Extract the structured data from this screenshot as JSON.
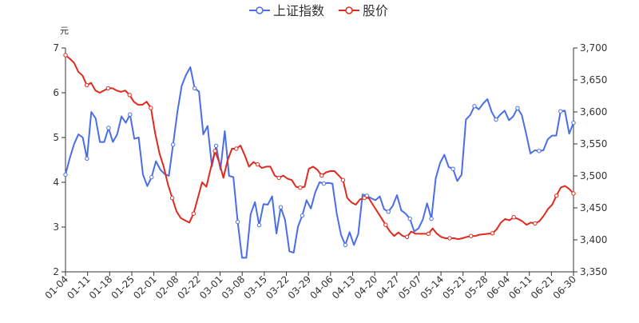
{
  "chart_data": {
    "type": "line",
    "title": "",
    "left_axis": {
      "unit_label": "元",
      "ylim": [
        2,
        7
      ],
      "ticks": [
        "2",
        "3",
        "4",
        "5",
        "6",
        "7"
      ]
    },
    "right_axis": {
      "ylim": [
        3350,
        3700
      ],
      "ticks": [
        "3,350",
        "3,400",
        "3,450",
        "3,500",
        "3,550",
        "3,600",
        "3,650",
        "3,700"
      ]
    },
    "x_tick_labels": [
      "01-04",
      "01-11",
      "01-18",
      "01-25",
      "02-01",
      "02-08",
      "02-22",
      "03-01",
      "03-08",
      "03-15",
      "03-22",
      "03-29",
      "04-06",
      "04-13",
      "04-20",
      "04-27",
      "05-07",
      "05-14",
      "05-21",
      "05-28",
      "06-04",
      "06-11",
      "06-21",
      "06-30"
    ],
    "legend": {
      "position": "top-center"
    },
    "grid": false,
    "series": [
      {
        "name": "上证指数",
        "axis": "right",
        "color": "#4a6ee8",
        "values": [
          3502,
          3528,
          3550,
          3565,
          3560,
          3527,
          3600,
          3590,
          3553,
          3553,
          3575,
          3553,
          3565,
          3593,
          3583,
          3596,
          3558,
          3560,
          3502,
          3484,
          3498,
          3523,
          3510,
          3503,
          3500,
          3549,
          3600,
          3641,
          3658,
          3670,
          3637,
          3632,
          3565,
          3578,
          3515,
          3547,
          3510,
          3570,
          3500,
          3498,
          3428,
          3372,
          3372,
          3440,
          3459,
          3423,
          3456,
          3455,
          3468,
          3410,
          3451,
          3431,
          3382,
          3380,
          3421,
          3438,
          3462,
          3449,
          3474,
          3490,
          3488,
          3489,
          3488,
          3441,
          3408,
          3392,
          3412,
          3392,
          3409,
          3471,
          3469,
          3465,
          3462,
          3468,
          3448,
          3444,
          3453,
          3470,
          3446,
          3441,
          3433,
          3413,
          3418,
          3432,
          3457,
          3433,
          3496,
          3520,
          3533,
          3514,
          3511,
          3492,
          3502,
          3588,
          3595,
          3609,
          3604,
          3613,
          3620,
          3600,
          3588,
          3596,
          3602,
          3587,
          3593,
          3606,
          3595,
          3566,
          3535,
          3540,
          3539,
          3540,
          3557,
          3563,
          3563,
          3601,
          3602,
          3566,
          3583
        ]
      },
      {
        "name": "股价",
        "axis": "left",
        "color": "#e02a1e",
        "values": [
          6.84,
          6.76,
          6.67,
          6.47,
          6.38,
          6.17,
          6.22,
          6.05,
          6.0,
          6.05,
          6.1,
          6.1,
          6.05,
          6.02,
          6.05,
          5.95,
          5.8,
          5.73,
          5.73,
          5.8,
          5.66,
          5.1,
          4.65,
          4.35,
          3.95,
          3.65,
          3.35,
          3.2,
          3.15,
          3.1,
          3.3,
          3.65,
          4.0,
          3.9,
          4.3,
          4.7,
          4.45,
          4.1,
          4.5,
          4.75,
          4.75,
          4.82,
          4.6,
          4.35,
          4.45,
          4.4,
          4.32,
          4.35,
          4.35,
          4.15,
          4.1,
          4.15,
          4.08,
          4.05,
          3.9,
          3.88,
          3.9,
          4.3,
          4.35,
          4.28,
          4.15,
          4.22,
          4.25,
          4.25,
          4.15,
          4.05,
          3.65,
          3.55,
          3.5,
          3.62,
          3.65,
          3.65,
          3.5,
          3.35,
          3.2,
          3.05,
          2.9,
          2.8,
          2.88,
          2.8,
          2.78,
          2.9,
          2.85,
          2.85,
          2.85,
          2.85,
          2.97,
          2.85,
          2.78,
          2.75,
          2.75,
          2.75,
          2.73,
          2.75,
          2.78,
          2.8,
          2.8,
          2.83,
          2.84,
          2.85,
          2.86,
          2.95,
          3.1,
          3.18,
          3.15,
          3.22,
          3.18,
          3.13,
          3.05,
          3.1,
          3.08,
          3.13,
          3.25,
          3.4,
          3.5,
          3.7,
          3.88,
          3.92,
          3.85,
          3.75
        ]
      }
    ]
  }
}
